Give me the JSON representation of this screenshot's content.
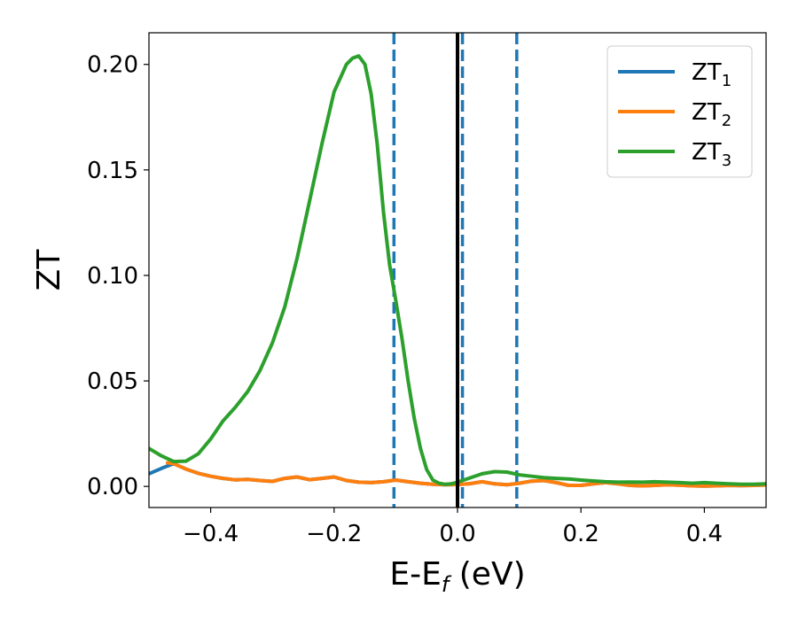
{
  "chart_data": {
    "type": "line",
    "xlabel": {
      "base": "E-E",
      "sub": "f",
      "suffix": " (eV)"
    },
    "ylabel": "ZT",
    "xlim": [
      -0.5,
      0.5
    ],
    "ylim": [
      -0.01,
      0.215
    ],
    "xticks": [
      -0.4,
      -0.2,
      0.0,
      0.2,
      0.4
    ],
    "xtick_labels": [
      "−0.4",
      "−0.2",
      "0.0",
      "0.2",
      "0.4"
    ],
    "yticks": [
      0.0,
      0.05,
      0.1,
      0.15,
      0.2
    ],
    "ytick_labels": [
      "0.00",
      "0.05",
      "0.10",
      "0.15",
      "0.20"
    ],
    "grid": false,
    "legend_position": "top-right",
    "vertical_lines": [
      {
        "x": -0.103,
        "color": "#1f77b4",
        "style": "dashed"
      },
      {
        "x": 0.0,
        "color": "#000000",
        "style": "solid"
      },
      {
        "x": 0.008,
        "color": "#1f77b4",
        "style": "dashed"
      },
      {
        "x": 0.096,
        "color": "#1f77b4",
        "style": "dashed"
      }
    ],
    "series": [
      {
        "name": "ZT",
        "name_sub": "1",
        "color": "#1f77b4",
        "x": [
          -0.5,
          -0.48,
          -0.46,
          -0.44,
          -0.42,
          -0.4,
          -0.38,
          -0.36,
          -0.34,
          -0.32,
          -0.3,
          -0.28,
          -0.26,
          -0.24,
          -0.22,
          -0.2,
          -0.18,
          -0.16,
          -0.14,
          -0.12,
          -0.1,
          -0.08,
          -0.06,
          -0.04,
          -0.02,
          0.0,
          0.02,
          0.04,
          0.06,
          0.08,
          0.1,
          0.12,
          0.14,
          0.16,
          0.18,
          0.2,
          0.22,
          0.24,
          0.26,
          0.28,
          0.3,
          0.32,
          0.34,
          0.36,
          0.38,
          0.4,
          0.42,
          0.44,
          0.46,
          0.48,
          0.5
        ],
        "y": [
          0.006,
          0.0085,
          0.0108,
          0.0082,
          0.0062,
          0.0048,
          0.0038,
          0.0031,
          0.0033,
          0.0028,
          0.0024,
          0.0038,
          0.0045,
          0.0032,
          0.0038,
          0.0045,
          0.0028,
          0.002,
          0.0018,
          0.0022,
          0.003,
          0.0022,
          0.0015,
          0.001,
          0.0008,
          0.0009,
          0.0013,
          0.0022,
          0.0012,
          0.0008,
          0.0015,
          0.0025,
          0.0028,
          0.0018,
          0.0005,
          0.0005,
          0.0012,
          0.0018,
          0.0012,
          0.0005,
          0.0003,
          0.0005,
          0.0008,
          0.0006,
          0.0003,
          0.0002,
          0.0003,
          0.0005,
          0.0004,
          0.0005,
          0.0007
        ]
      },
      {
        "name": "ZT",
        "name_sub": "2",
        "color": "#ff7f0e",
        "x": [
          -0.47,
          -0.46,
          -0.44,
          -0.42,
          -0.4,
          -0.38,
          -0.36,
          -0.34,
          -0.32,
          -0.3,
          -0.28,
          -0.26,
          -0.24,
          -0.22,
          -0.2,
          -0.18,
          -0.16,
          -0.14,
          -0.12,
          -0.1,
          -0.08,
          -0.06,
          -0.04,
          -0.02,
          0.0,
          0.02,
          0.04,
          0.06,
          0.08,
          0.1,
          0.12,
          0.14,
          0.16,
          0.18,
          0.2,
          0.22,
          0.24,
          0.26,
          0.28,
          0.3,
          0.32,
          0.34,
          0.36,
          0.38,
          0.4,
          0.42,
          0.44,
          0.46,
          0.48,
          0.5
        ],
        "y": [
          0.0112,
          0.0108,
          0.0082,
          0.0062,
          0.0048,
          0.0038,
          0.0031,
          0.0033,
          0.0028,
          0.0024,
          0.0038,
          0.0045,
          0.0032,
          0.0038,
          0.0045,
          0.0028,
          0.002,
          0.0018,
          0.0022,
          0.003,
          0.0022,
          0.0015,
          0.001,
          0.0008,
          0.0009,
          0.0013,
          0.0022,
          0.0012,
          0.0008,
          0.0015,
          0.0025,
          0.0028,
          0.0018,
          0.0005,
          0.0005,
          0.0012,
          0.0018,
          0.0012,
          0.0005,
          0.0003,
          0.0005,
          0.0008,
          0.0006,
          0.0003,
          0.0002,
          0.0003,
          0.0005,
          0.0004,
          0.0005,
          0.0007
        ]
      },
      {
        "name": "ZT",
        "name_sub": "3",
        "color": "#2ca02c",
        "x": [
          -0.5,
          -0.48,
          -0.46,
          -0.44,
          -0.42,
          -0.4,
          -0.38,
          -0.36,
          -0.34,
          -0.32,
          -0.3,
          -0.28,
          -0.26,
          -0.24,
          -0.22,
          -0.2,
          -0.18,
          -0.17,
          -0.16,
          -0.15,
          -0.14,
          -0.13,
          -0.12,
          -0.11,
          -0.1,
          -0.09,
          -0.08,
          -0.07,
          -0.06,
          -0.05,
          -0.04,
          -0.03,
          -0.02,
          -0.01,
          0.0,
          0.02,
          0.04,
          0.06,
          0.08,
          0.1,
          0.12,
          0.14,
          0.16,
          0.18,
          0.2,
          0.22,
          0.24,
          0.26,
          0.28,
          0.3,
          0.32,
          0.34,
          0.36,
          0.38,
          0.4,
          0.42,
          0.44,
          0.46,
          0.48,
          0.5
        ],
        "y": [
          0.018,
          0.0145,
          0.0118,
          0.012,
          0.0155,
          0.0225,
          0.031,
          0.0375,
          0.045,
          0.055,
          0.068,
          0.085,
          0.108,
          0.135,
          0.162,
          0.187,
          0.2,
          0.203,
          0.204,
          0.2,
          0.186,
          0.162,
          0.13,
          0.105,
          0.088,
          0.07,
          0.05,
          0.032,
          0.018,
          0.008,
          0.003,
          0.0015,
          0.001,
          0.0012,
          0.002,
          0.004,
          0.006,
          0.007,
          0.0068,
          0.0055,
          0.0048,
          0.0042,
          0.0038,
          0.0035,
          0.003,
          0.0026,
          0.0022,
          0.002,
          0.0021,
          0.002,
          0.0022,
          0.002,
          0.0018,
          0.0015,
          0.0018,
          0.0015,
          0.0012,
          0.001,
          0.001,
          0.0012
        ]
      }
    ]
  }
}
